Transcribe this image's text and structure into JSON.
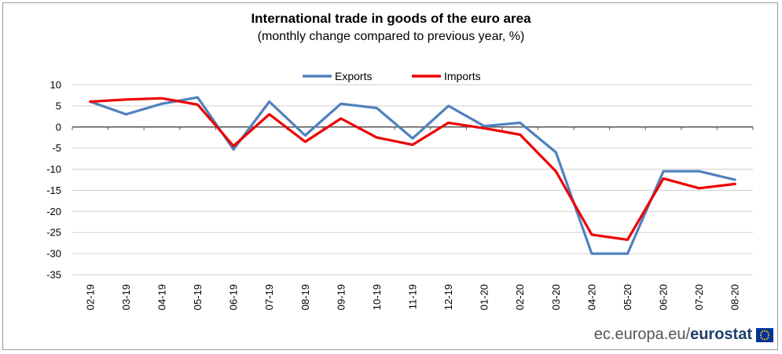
{
  "chart_data": {
    "type": "line",
    "title": "International trade in goods of the euro area",
    "subtitle": "(monthly change compared to previous year, %)",
    "categories": [
      "02-19",
      "03-19",
      "04-19",
      "05-19",
      "06-19",
      "07-19",
      "08-19",
      "09-19",
      "10-19",
      "11-19",
      "12-19",
      "01-20",
      "02-20",
      "03-20",
      "04-20",
      "05-20",
      "06-20",
      "07-20",
      "08-20"
    ],
    "series": [
      {
        "name": "Exports",
        "color": "#4f81bd",
        "values": [
          6.0,
          3.0,
          5.5,
          7.0,
          -5.3,
          6.0,
          -2.0,
          5.5,
          4.5,
          -2.7,
          5.0,
          0.2,
          1.0,
          -6.0,
          -30.0,
          -30.0,
          -10.5,
          -10.5,
          -12.5
        ]
      },
      {
        "name": "Imports",
        "color": "#ee0000",
        "values": [
          6.0,
          6.5,
          6.8,
          5.3,
          -4.5,
          3.0,
          -3.5,
          2.0,
          -2.5,
          -4.2,
          1.0,
          -0.3,
          -1.8,
          -10.5,
          -25.5,
          -26.7,
          -12.2,
          -14.5,
          -13.5
        ]
      }
    ],
    "y_ticks": [
      10,
      5,
      0,
      -5,
      -10,
      -15,
      -20,
      -25,
      -30,
      -35
    ],
    "ylim": [
      -35,
      10
    ],
    "xlabel": "",
    "ylabel": "",
    "grid": true,
    "legend": "top-center"
  },
  "footer": {
    "site": "ec.europa.eu/",
    "brand": "eurostat"
  },
  "logo": {
    "name": "eu-flag-icon",
    "color": "#003399",
    "star_color": "#ffcc00"
  }
}
